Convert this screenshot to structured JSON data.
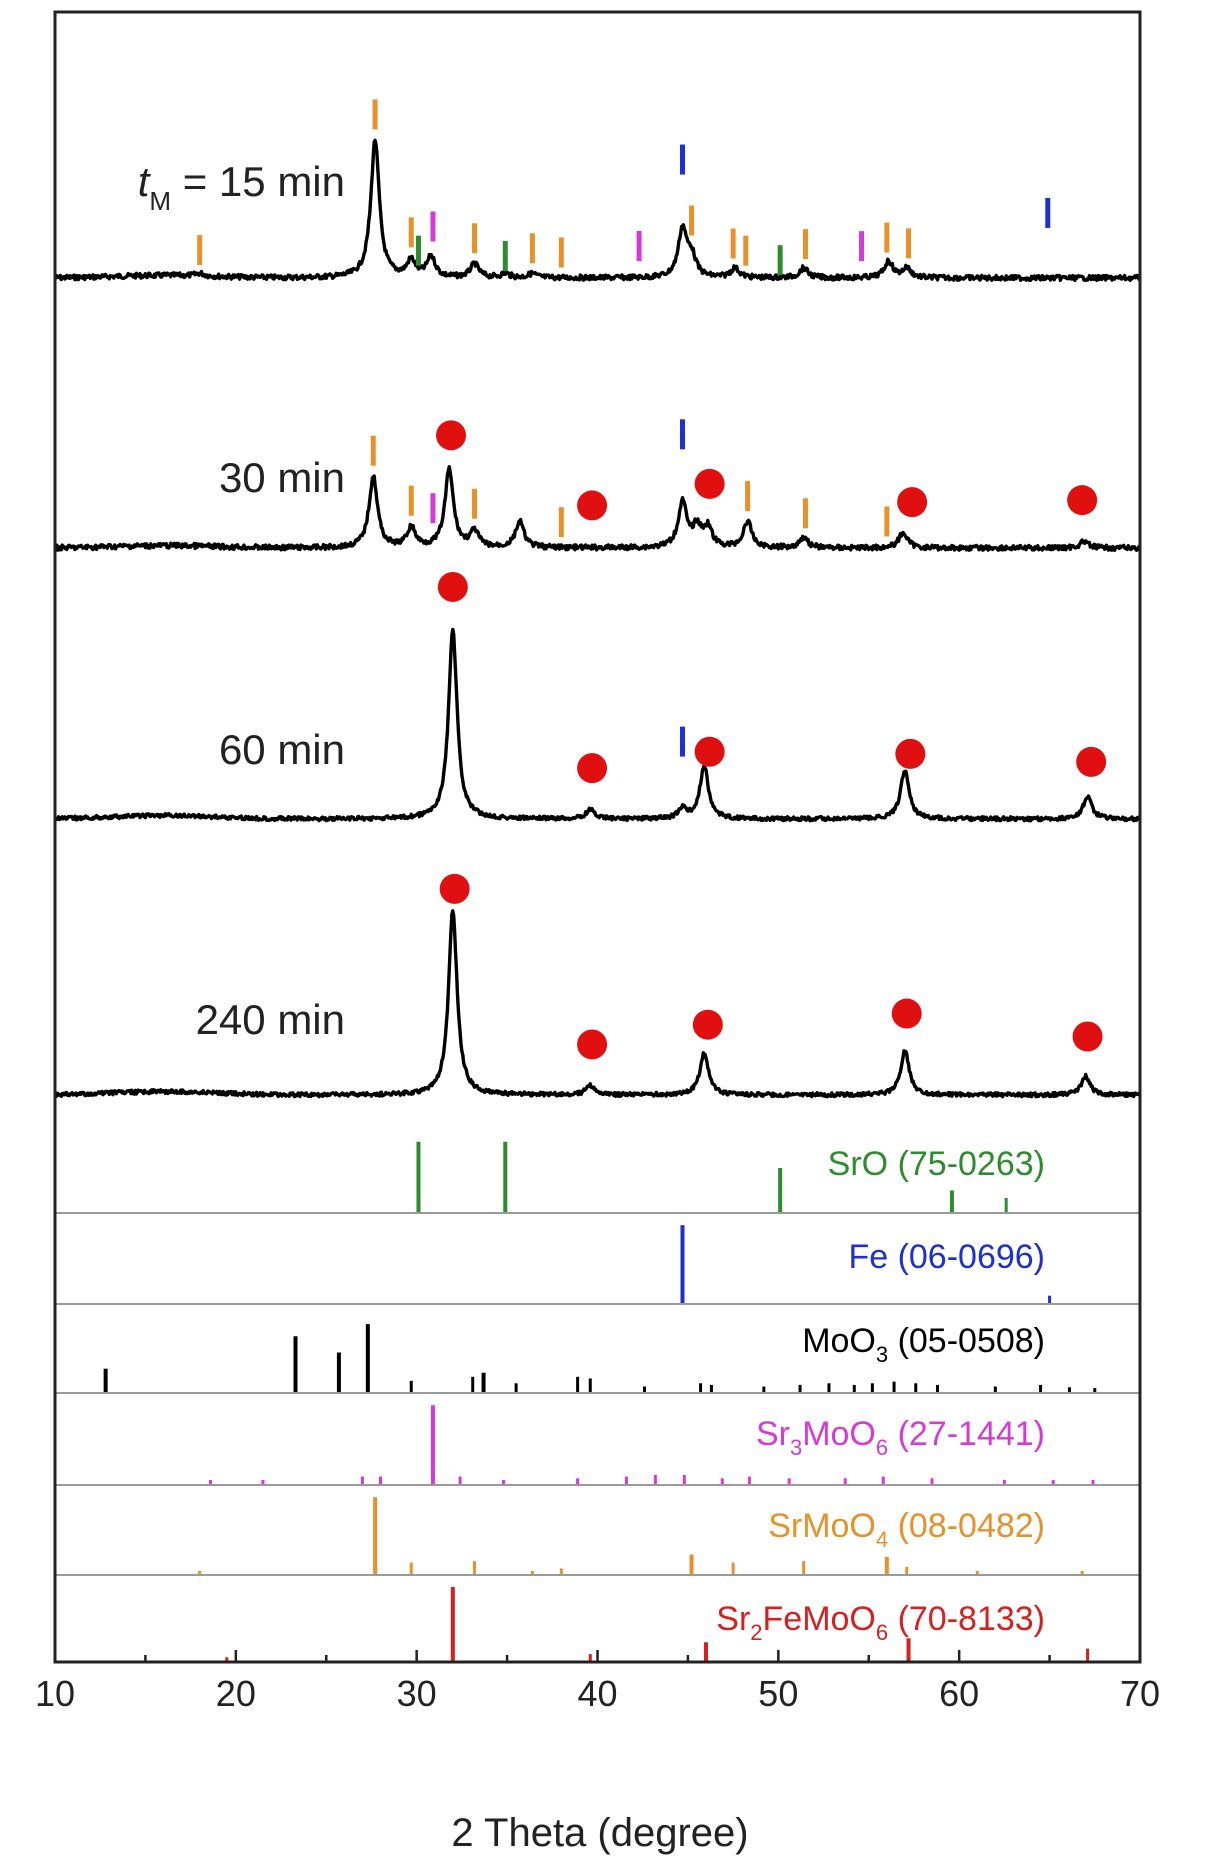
{
  "chart_data": {
    "type": "line",
    "xlabel": "2 Theta (degree)",
    "ylabel": "",
    "xlim": [
      10,
      70
    ],
    "x_ticks": [
      "10",
      "20",
      "30",
      "40",
      "50",
      "60",
      "70"
    ],
    "grid": false,
    "colors": {
      "curve": "#000000",
      "SrO": "#2e8b2e",
      "Fe": "#1f2fd6",
      "MoO3": "#000000",
      "Sr3MoO6": "#d63ad6",
      "SrMoO4": "#e8912a",
      "Sr2FeMoO6": "#d81f1f",
      "phase_marker": "#e01010"
    },
    "series": [
      {
        "label_prefix": "t",
        "label_sub": "M",
        "label_rest": " = 15 min",
        "peaks": [
          [
            18.0,
            0.02
          ],
          [
            27.7,
            1.0
          ],
          [
            29.7,
            0.12
          ],
          [
            30.8,
            0.15
          ],
          [
            33.2,
            0.1
          ],
          [
            34.9,
            0.03
          ],
          [
            36.4,
            0.03
          ],
          [
            44.7,
            0.35
          ],
          [
            45.2,
            0.15
          ],
          [
            47.6,
            0.07
          ],
          [
            51.4,
            0.07
          ],
          [
            56.1,
            0.12
          ],
          [
            57.1,
            0.07
          ]
        ],
        "markers_srmoo4": [
          18.0,
          27.7,
          29.7,
          33.2,
          36.4,
          38.0,
          45.2,
          47.5,
          48.2,
          51.5,
          56.0,
          57.2
        ],
        "markers_sro": [
          30.1,
          34.9,
          50.1
        ],
        "markers_sr3moo6": [
          30.9,
          42.3,
          54.6
        ],
        "markers_fe": [
          44.7,
          64.9
        ],
        "markers_phase": []
      },
      {
        "label": "30 min",
        "peaks": [
          [
            27.6,
            0.55
          ],
          [
            29.7,
            0.15
          ],
          [
            31.8,
            0.6
          ],
          [
            33.2,
            0.12
          ],
          [
            35.7,
            0.2
          ],
          [
            44.7,
            0.35
          ],
          [
            45.5,
            0.15
          ],
          [
            46.1,
            0.15
          ],
          [
            48.3,
            0.2
          ],
          [
            51.4,
            0.08
          ],
          [
            56.9,
            0.12
          ],
          [
            66.9,
            0.05
          ]
        ],
        "markers_srmoo4": [
          27.6,
          29.7,
          33.2,
          38.0,
          48.3,
          51.5,
          56.0
        ],
        "markers_sro": [],
        "markers_sr3moo6": [
          30.9
        ],
        "markers_fe": [
          44.7
        ],
        "markers_phase": [
          31.9,
          39.7,
          46.2,
          57.4,
          66.8
        ]
      },
      {
        "label": "60 min",
        "peaks": [
          [
            32.0,
            1.0
          ],
          [
            39.6,
            0.05
          ],
          [
            44.7,
            0.05
          ],
          [
            45.9,
            0.28
          ],
          [
            57.0,
            0.26
          ],
          [
            67.1,
            0.12
          ]
        ],
        "markers_srmoo4": [],
        "markers_sro": [],
        "markers_sr3moo6": [],
        "markers_fe": [
          44.7
        ],
        "markers_phase": [
          32.0,
          39.7,
          46.2,
          57.3,
          67.3
        ]
      },
      {
        "label": "240 min",
        "peaks": [
          [
            32.0,
            1.0
          ],
          [
            39.6,
            0.05
          ],
          [
            45.9,
            0.23
          ],
          [
            57.0,
            0.24
          ],
          [
            67.0,
            0.1
          ]
        ],
        "markers_srmoo4": [],
        "markers_sro": [],
        "markers_sr3moo6": [],
        "markers_fe": [],
        "markers_phase": [
          32.1,
          39.7,
          46.1,
          57.1,
          67.1
        ]
      }
    ],
    "references": [
      {
        "key": "SrO",
        "label_parts": [
          [
            "SrO (75-0263)",
            false
          ]
        ],
        "lines": [
          [
            30.1,
            0.95
          ],
          [
            34.9,
            0.95
          ],
          [
            50.1,
            0.6
          ],
          [
            59.6,
            0.3
          ],
          [
            62.6,
            0.2
          ]
        ]
      },
      {
        "key": "Fe",
        "label_parts": [
          [
            "Fe (06-0696)",
            false
          ]
        ],
        "lines": [
          [
            44.7,
            0.95
          ],
          [
            65.0,
            0.1
          ]
        ]
      },
      {
        "key": "MoO3",
        "label_parts": [
          [
            "MoO",
            false
          ],
          [
            "3",
            true
          ],
          [
            " (05-0508)",
            false
          ]
        ],
        "lines": [
          [
            12.8,
            0.3
          ],
          [
            23.3,
            0.7
          ],
          [
            25.7,
            0.5
          ],
          [
            27.3,
            0.85
          ],
          [
            29.7,
            0.15
          ],
          [
            33.1,
            0.2
          ],
          [
            33.7,
            0.25
          ],
          [
            35.5,
            0.12
          ],
          [
            38.9,
            0.2
          ],
          [
            39.6,
            0.18
          ],
          [
            42.6,
            0.08
          ],
          [
            45.7,
            0.12
          ],
          [
            46.3,
            0.1
          ],
          [
            49.2,
            0.08
          ],
          [
            51.2,
            0.1
          ],
          [
            52.8,
            0.12
          ],
          [
            54.2,
            0.1
          ],
          [
            55.2,
            0.12
          ],
          [
            56.4,
            0.14
          ],
          [
            57.6,
            0.12
          ],
          [
            58.8,
            0.1
          ],
          [
            62.0,
            0.08
          ],
          [
            64.5,
            0.1
          ],
          [
            66.1,
            0.07
          ],
          [
            67.5,
            0.06
          ]
        ]
      },
      {
        "key": "Sr3MoO6",
        "label_parts": [
          [
            "Sr",
            false
          ],
          [
            "3",
            true
          ],
          [
            "MoO",
            false
          ],
          [
            "6",
            true
          ],
          [
            " (27-1441)",
            false
          ]
        ],
        "lines": [
          [
            18.6,
            0.06
          ],
          [
            21.5,
            0.06
          ],
          [
            27.0,
            0.1
          ],
          [
            28.0,
            0.1
          ],
          [
            30.9,
            0.95
          ],
          [
            32.4,
            0.1
          ],
          [
            34.8,
            0.06
          ],
          [
            38.9,
            0.08
          ],
          [
            41.6,
            0.1
          ],
          [
            43.2,
            0.12
          ],
          [
            44.8,
            0.12
          ],
          [
            46.9,
            0.08
          ],
          [
            48.4,
            0.1
          ],
          [
            50.6,
            0.08
          ],
          [
            53.7,
            0.08
          ],
          [
            55.8,
            0.1
          ],
          [
            58.5,
            0.08
          ],
          [
            62.5,
            0.06
          ],
          [
            65.2,
            0.06
          ],
          [
            67.4,
            0.06
          ]
        ]
      },
      {
        "key": "SrMoO4",
        "label_parts": [
          [
            "SrMoO",
            false
          ],
          [
            "4",
            true
          ],
          [
            " (08-0482)",
            false
          ]
        ],
        "lines": [
          [
            18.0,
            0.05
          ],
          [
            27.7,
            0.95
          ],
          [
            29.7,
            0.15
          ],
          [
            33.2,
            0.17
          ],
          [
            36.4,
            0.05
          ],
          [
            38.0,
            0.08
          ],
          [
            45.2,
            0.25
          ],
          [
            47.5,
            0.15
          ],
          [
            51.4,
            0.17
          ],
          [
            56.0,
            0.22
          ],
          [
            57.1,
            0.1
          ],
          [
            61.0,
            0.05
          ],
          [
            66.8,
            0.05
          ]
        ]
      },
      {
        "key": "Sr2FeMoO6",
        "label_parts": [
          [
            "Sr",
            false
          ],
          [
            "2",
            true
          ],
          [
            "FeMoO",
            false
          ],
          [
            "6",
            true
          ],
          [
            " (70-8133)",
            false
          ]
        ],
        "lines": [
          [
            19.5,
            0.06
          ],
          [
            32.0,
            0.95
          ],
          [
            39.6,
            0.1
          ],
          [
            46.0,
            0.25
          ],
          [
            57.2,
            0.3
          ],
          [
            67.1,
            0.17
          ]
        ]
      }
    ]
  }
}
